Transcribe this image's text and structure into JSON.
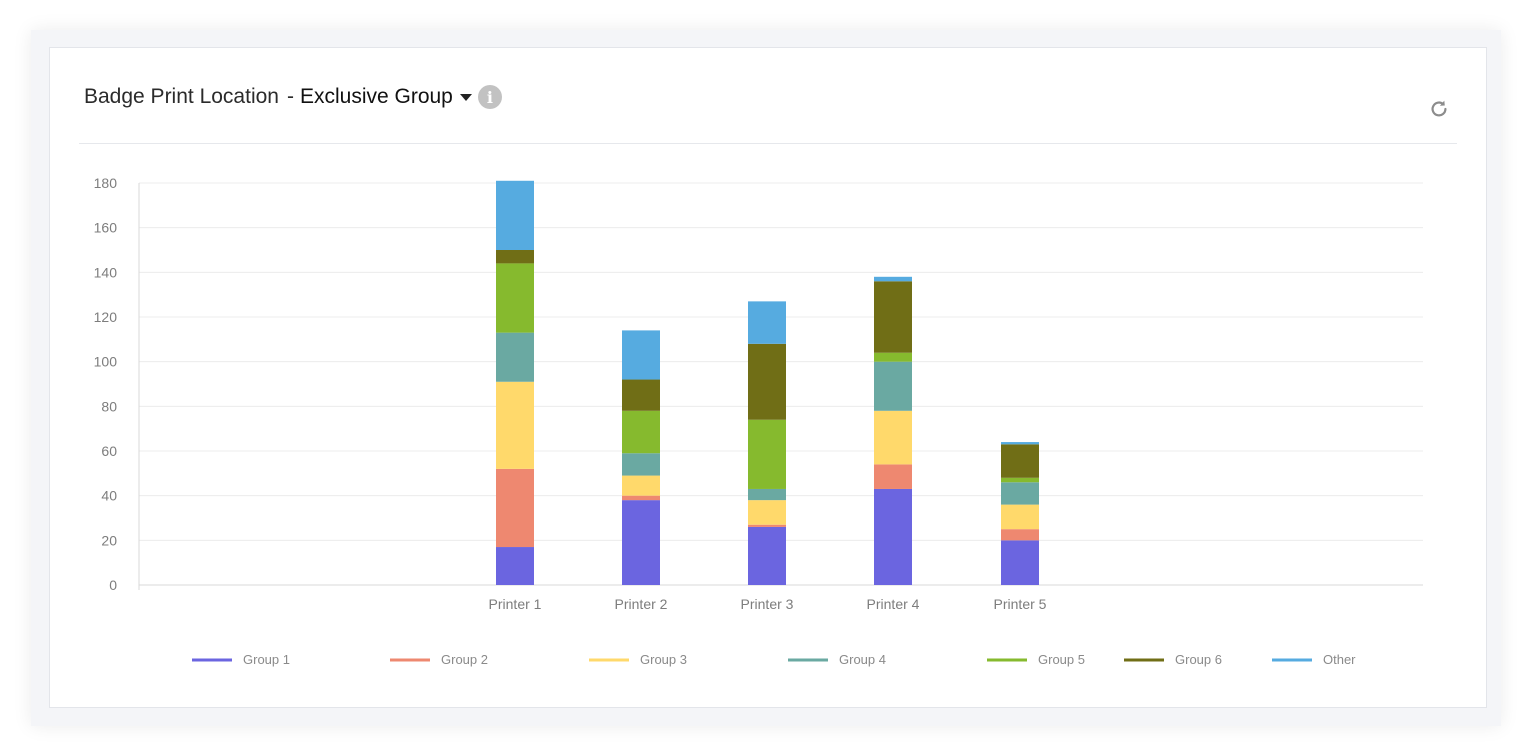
{
  "header": {
    "title": "Badge Print Location",
    "separator": "-",
    "group_selector": "Exclusive Group",
    "info_icon": "info-icon",
    "refresh_icon": "refresh-icon"
  },
  "colors": {
    "Group 1": "#6b65e0",
    "Group 2": "#ee8870",
    "Group 3": "#ffd96b",
    "Group 4": "#6aa9a2",
    "Group 5": "#86ba2e",
    "Group 6": "#706e16",
    "Other": "#56abe0"
  },
  "chart_data": {
    "type": "bar",
    "stacked": true,
    "title": "",
    "xlabel": "",
    "ylabel": "",
    "ylim": [
      0,
      180
    ],
    "yticks": [
      0,
      20,
      40,
      60,
      80,
      100,
      120,
      140,
      160,
      180
    ],
    "grid": true,
    "legend_position": "bottom",
    "categories": [
      "Printer 1",
      "Printer 2",
      "Printer 3",
      "Printer 4",
      "Printer 5"
    ],
    "series": [
      {
        "name": "Group 1",
        "values": [
          17,
          38,
          26,
          43,
          20
        ]
      },
      {
        "name": "Group 2",
        "values": [
          35,
          2,
          1,
          11,
          5
        ]
      },
      {
        "name": "Group 3",
        "values": [
          39,
          9,
          11,
          24,
          11
        ]
      },
      {
        "name": "Group 4",
        "values": [
          22,
          10,
          5,
          22,
          10
        ]
      },
      {
        "name": "Group 5",
        "values": [
          31,
          19,
          31,
          4,
          2
        ]
      },
      {
        "name": "Group 6",
        "values": [
          6,
          14,
          34,
          32,
          15
        ]
      },
      {
        "name": "Other",
        "values": [
          31,
          22,
          19,
          2,
          1
        ]
      }
    ]
  }
}
